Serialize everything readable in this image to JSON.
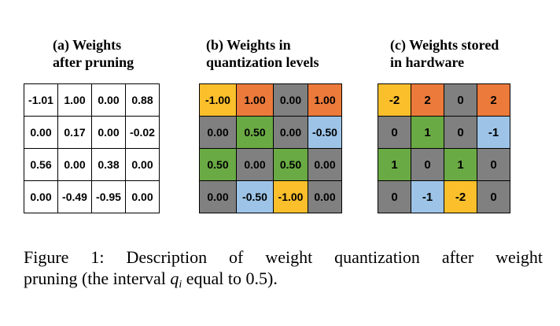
{
  "colors": {
    "yellow": "#FBBF2C",
    "orange": "#EC7A3B",
    "gray": "#808080",
    "green": "#6AAA44",
    "blue": "#9DC4E7",
    "white": "#FFFFFF"
  },
  "panels": [
    {
      "id": "a",
      "title_lines": [
        "(a) Weights",
        "after pruning"
      ],
      "rows": [
        [
          {
            "text": "-1.01",
            "color": "white"
          },
          {
            "text": "1.00",
            "color": "white"
          },
          {
            "text": "0.00",
            "color": "white"
          },
          {
            "text": "0.88",
            "color": "white"
          }
        ],
        [
          {
            "text": "0.00",
            "color": "white"
          },
          {
            "text": "0.17",
            "color": "white"
          },
          {
            "text": "0.00",
            "color": "white"
          },
          {
            "text": "-0.02",
            "color": "white"
          }
        ],
        [
          {
            "text": "0.56",
            "color": "white"
          },
          {
            "text": "0.00",
            "color": "white"
          },
          {
            "text": "0.38",
            "color": "white"
          },
          {
            "text": "0.00",
            "color": "white"
          }
        ],
        [
          {
            "text": "0.00",
            "color": "white"
          },
          {
            "text": "-0.49",
            "color": "white"
          },
          {
            "text": "-0.95",
            "color": "white"
          },
          {
            "text": "0.00",
            "color": "white"
          }
        ]
      ]
    },
    {
      "id": "b",
      "title_lines": [
        "(b) Weights in",
        "quantization levels"
      ],
      "rows": [
        [
          {
            "text": "-1.00",
            "color": "yellow"
          },
          {
            "text": "1.00",
            "color": "orange"
          },
          {
            "text": "0.00",
            "color": "gray"
          },
          {
            "text": "1.00",
            "color": "orange"
          }
        ],
        [
          {
            "text": "0.00",
            "color": "gray"
          },
          {
            "text": "0.50",
            "color": "green"
          },
          {
            "text": "0.00",
            "color": "gray"
          },
          {
            "text": "-0.50",
            "color": "blue"
          }
        ],
        [
          {
            "text": "0.50",
            "color": "green"
          },
          {
            "text": "0.00",
            "color": "gray"
          },
          {
            "text": "0.50",
            "color": "green"
          },
          {
            "text": "0.00",
            "color": "gray"
          }
        ],
        [
          {
            "text": "0.00",
            "color": "gray"
          },
          {
            "text": "-0.50",
            "color": "blue"
          },
          {
            "text": "-1.00",
            "color": "yellow"
          },
          {
            "text": "0.00",
            "color": "gray"
          }
        ]
      ]
    },
    {
      "id": "c",
      "title_lines": [
        "(c) Weights stored",
        "in hardware"
      ],
      "rows": [
        [
          {
            "text": "-2",
            "color": "yellow"
          },
          {
            "text": "2",
            "color": "orange"
          },
          {
            "text": "0",
            "color": "gray"
          },
          {
            "text": "2",
            "color": "orange"
          }
        ],
        [
          {
            "text": "0",
            "color": "gray"
          },
          {
            "text": "1",
            "color": "green"
          },
          {
            "text": "0",
            "color": "gray"
          },
          {
            "text": "-1",
            "color": "blue"
          }
        ],
        [
          {
            "text": "1",
            "color": "green"
          },
          {
            "text": "0",
            "color": "gray"
          },
          {
            "text": "1",
            "color": "green"
          },
          {
            "text": "0",
            "color": "gray"
          }
        ],
        [
          {
            "text": "0",
            "color": "gray"
          },
          {
            "text": "-1",
            "color": "blue"
          },
          {
            "text": "-2",
            "color": "yellow"
          },
          {
            "text": "0",
            "color": "gray"
          }
        ]
      ]
    }
  ],
  "caption": {
    "line1": "Figure 1: Description of weight quantization after weight",
    "line2_pre": "pruning (the interval ",
    "line2_var": "q",
    "line2_sub": "i",
    "line2_post": " equal to 0.5)."
  }
}
